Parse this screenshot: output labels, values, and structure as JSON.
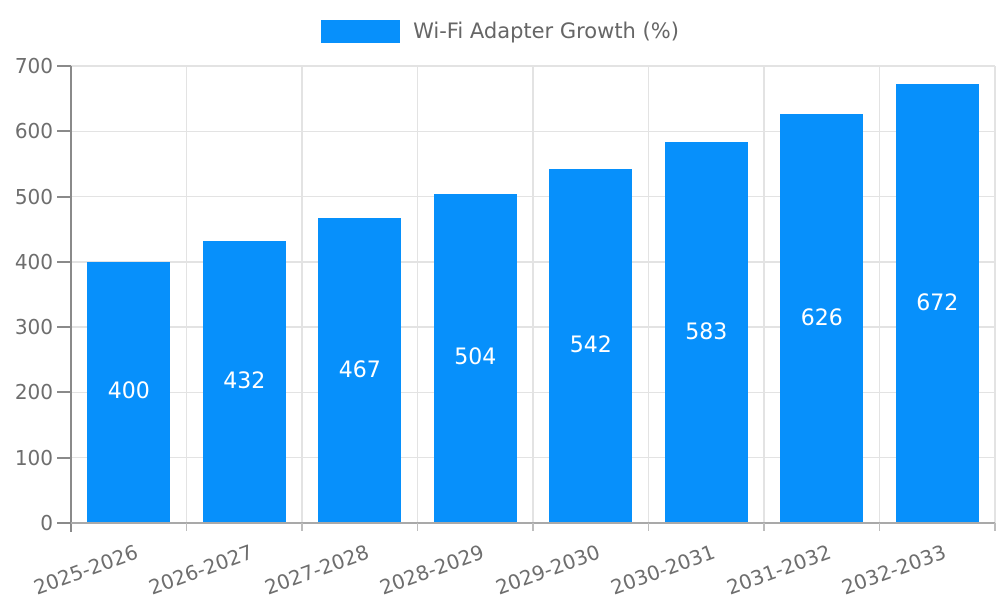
{
  "chart_data": {
    "type": "bar",
    "title": "Wi-Fi Adapter Growth (%)",
    "legend": {
      "position": "top",
      "label": "Wi-Fi Adapter Growth (%)"
    },
    "categories": [
      "2025-2026",
      "2026-2027",
      "2027-2028",
      "2028-2029",
      "2029-2030",
      "2030-2031",
      "2031-2032",
      "2032-2033"
    ],
    "values": [
      400,
      432,
      467,
      504,
      542,
      583,
      626,
      672
    ],
    "xlabel": "",
    "ylabel": "",
    "ylim": [
      0,
      700
    ],
    "yticks": [
      0,
      100,
      200,
      300,
      400,
      500,
      600,
      700
    ],
    "grid": true,
    "data_labels": "inside-center",
    "colors": {
      "bar": "#0790fb",
      "data_label": "#ffffff",
      "axis_text": "#6e6e6e",
      "legend_text": "#666666",
      "gridline": "#e3e3e3",
      "y_axis_line": "#8a8a8a",
      "x_axis_line": "#a9a9a9",
      "x_tick": "#bdbdbd"
    }
  }
}
